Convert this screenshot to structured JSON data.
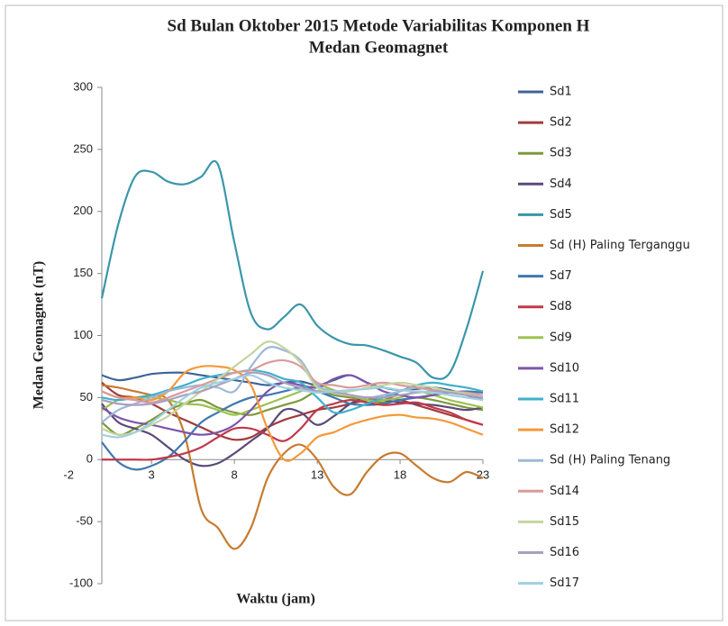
{
  "chart_data": {
    "type": "line",
    "title": [
      "Sd Bulan Oktober 2015 Metode Variabilitas Komponen H",
      "Medan Geomagnet"
    ],
    "x_label": "Waktu  (jam)",
    "y_label": "Medan  Geomagnet (nT)",
    "x": [
      0,
      1,
      2,
      3,
      4,
      5,
      6,
      7,
      8,
      9,
      10,
      11,
      12,
      13,
      14,
      15,
      16,
      17,
      18,
      19,
      20,
      21,
      22,
      23
    ],
    "xlim": [
      0,
      23
    ],
    "xticks": [
      -2,
      3,
      8,
      13,
      18,
      23
    ],
    "ylim": [
      -100,
      300
    ],
    "yticks": [
      -100,
      -50,
      0,
      50,
      100,
      150,
      200,
      250,
      300
    ],
    "legend": "right",
    "series": [
      {
        "name": "Sd1",
        "color": "#3c6496",
        "values": [
          68,
          64,
          66,
          69,
          70,
          70,
          68,
          66,
          64,
          62,
          60,
          62,
          63,
          60,
          64,
          68,
          62,
          58,
          56,
          57,
          58,
          56,
          52,
          48
        ]
      },
      {
        "name": "Sd2",
        "color": "#a23b3a",
        "values": [
          62,
          52,
          50,
          45,
          38,
          32,
          26,
          20,
          16,
          18,
          26,
          32,
          36,
          40,
          42,
          45,
          48,
          50,
          48,
          44,
          40,
          36,
          32,
          28
        ]
      },
      {
        "name": "Sd3",
        "color": "#7e9a3c",
        "values": [
          30,
          20,
          25,
          32,
          40,
          45,
          48,
          42,
          38,
          36,
          40,
          44,
          48,
          55,
          52,
          50,
          48,
          46,
          48,
          50,
          48,
          45,
          42,
          40
        ]
      },
      {
        "name": "Sd4",
        "color": "#5b4a78",
        "values": [
          45,
          30,
          25,
          20,
          10,
          0,
          -5,
          -3,
          5,
          15,
          25,
          40,
          38,
          28,
          35,
          45,
          50,
          48,
          46,
          45,
          44,
          42,
          40,
          42
        ]
      },
      {
        "name": "Sd5",
        "color": "#3a96aa",
        "values": [
          130,
          190,
          228,
          232,
          224,
          222,
          228,
          238,
          175,
          118,
          105,
          115,
          125,
          108,
          98,
          93,
          92,
          88,
          83,
          78,
          66,
          70,
          105,
          152
        ]
      },
      {
        "name": "Sd (H) Paling Terganggu",
        "color": "#c77b2f",
        "values": [
          60,
          58,
          55,
          52,
          48,
          20,
          -40,
          -55,
          -72,
          -55,
          -15,
          5,
          12,
          0,
          -22,
          -28,
          -10,
          3,
          5,
          -5,
          -15,
          -18,
          -10,
          -15
        ]
      },
      {
        "name": "Sd7",
        "color": "#3f78b0",
        "values": [
          14,
          -2,
          -8,
          -5,
          2,
          15,
          30,
          38,
          45,
          50,
          52,
          55,
          58,
          55,
          50,
          45,
          44,
          45,
          48,
          50,
          52,
          54,
          55,
          54
        ]
      },
      {
        "name": "Sd8",
        "color": "#c0394b",
        "values": [
          0,
          0,
          0,
          0,
          2,
          5,
          10,
          18,
          25,
          25,
          20,
          15,
          25,
          40,
          45,
          48,
          46,
          44,
          45,
          46,
          42,
          38,
          32,
          28
        ]
      },
      {
        "name": "Sd9",
        "color": "#9dc14f",
        "values": [
          40,
          48,
          50,
          50,
          48,
          45,
          44,
          40,
          36,
          40,
          45,
          50,
          55,
          60,
          56,
          52,
          48,
          48,
          50,
          55,
          52,
          48,
          45,
          42
        ]
      },
      {
        "name": "Sd10",
        "color": "#7d55a8",
        "values": [
          42,
          34,
          30,
          28,
          25,
          22,
          20,
          22,
          28,
          40,
          55,
          62,
          60,
          58,
          65,
          68,
          62,
          55,
          52,
          50,
          52,
          55,
          52,
          48
        ]
      },
      {
        "name": "Sd11",
        "color": "#40b0cc",
        "values": [
          50,
          48,
          50,
          52,
          56,
          60,
          65,
          68,
          70,
          72,
          70,
          65,
          62,
          50,
          38,
          40,
          45,
          50,
          55,
          60,
          62,
          60,
          58,
          55
        ]
      },
      {
        "name": "Sd12",
        "color": "#f5993a",
        "values": [
          55,
          50,
          50,
          48,
          55,
          70,
          75,
          75,
          72,
          60,
          25,
          0,
          5,
          18,
          22,
          28,
          32,
          35,
          36,
          34,
          33,
          30,
          25,
          20
        ]
      },
      {
        "name": "Sd (H) Paling Tenang",
        "color": "#9fb7d8",
        "values": [
          30,
          40,
          45,
          50,
          55,
          58,
          60,
          58,
          55,
          75,
          90,
          88,
          80,
          60,
          55,
          52,
          50,
          52,
          55,
          58,
          56,
          54,
          52,
          50
        ]
      },
      {
        "name": "Sd14",
        "color": "#d99b9b",
        "values": [
          55,
          50,
          48,
          46,
          50,
          55,
          60,
          65,
          70,
          72,
          78,
          80,
          75,
          62,
          60,
          58,
          60,
          62,
          60,
          58,
          56,
          55,
          54,
          52
        ]
      },
      {
        "name": "Sd15",
        "color": "#c4d4a0",
        "values": [
          25,
          20,
          22,
          28,
          35,
          45,
          55,
          65,
          75,
          85,
          95,
          90,
          78,
          58,
          55,
          55,
          58,
          60,
          62,
          60,
          58,
          55,
          53,
          50
        ]
      },
      {
        "name": "Sd16",
        "color": "#a8a0c0",
        "values": [
          48,
          45,
          44,
          45,
          48,
          52,
          55,
          60,
          65,
          70,
          68,
          62,
          58,
          55,
          54,
          52,
          50,
          50,
          52,
          54,
          55,
          54,
          52,
          50
        ]
      },
      {
        "name": "Sd17",
        "color": "#9fd0e0",
        "values": [
          20,
          18,
          22,
          30,
          40,
          50,
          58,
          62,
          65,
          68,
          62,
          58,
          56,
          54,
          55,
          56,
          57,
          58,
          56,
          55,
          54,
          52,
          50,
          48
        ]
      }
    ]
  }
}
